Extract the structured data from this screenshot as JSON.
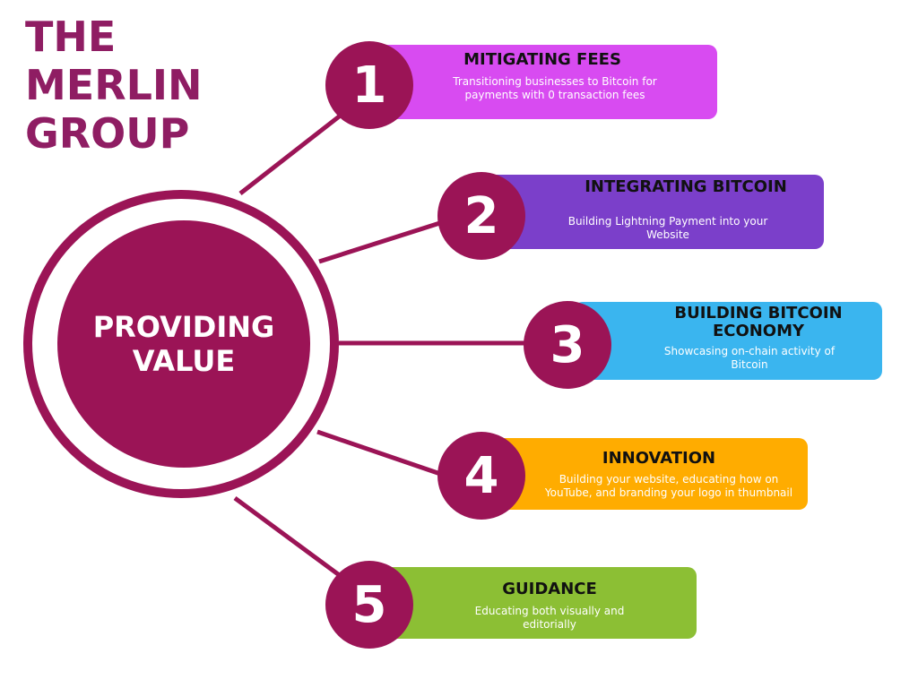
{
  "brand": {
    "line1": "THE",
    "line2": "MERLIN",
    "line3": "GROUP"
  },
  "center": {
    "line1": "PROVIDING",
    "line2": "VALUE"
  },
  "colors": {
    "brand": "#8f1d63",
    "circle": "#9b1456",
    "card1": "#d84bf1",
    "card2": "#7b3fca",
    "card3": "#3ab5ef",
    "card4": "#ffac00",
    "card5": "#8cbf34"
  },
  "items": [
    {
      "number": "1",
      "title": "MITIGATING FEES",
      "description": "Transitioning businesses to Bitcoin for payments with 0 transaction fees"
    },
    {
      "number": "2",
      "title": "INTEGRATING BITCOIN",
      "description": "Building Lightning Payment into your Website"
    },
    {
      "number": "3",
      "title": "BUILDING BITCOIN ECONOMY",
      "description": "Showcasing on-chain activity of Bitcoin"
    },
    {
      "number": "4",
      "title": "INNOVATION",
      "description": "Building your website, educating how on YouTube, and branding your logo in thumbnail"
    },
    {
      "number": "5",
      "title": "GUIDANCE",
      "description": "Educating both visually and editorially"
    }
  ]
}
